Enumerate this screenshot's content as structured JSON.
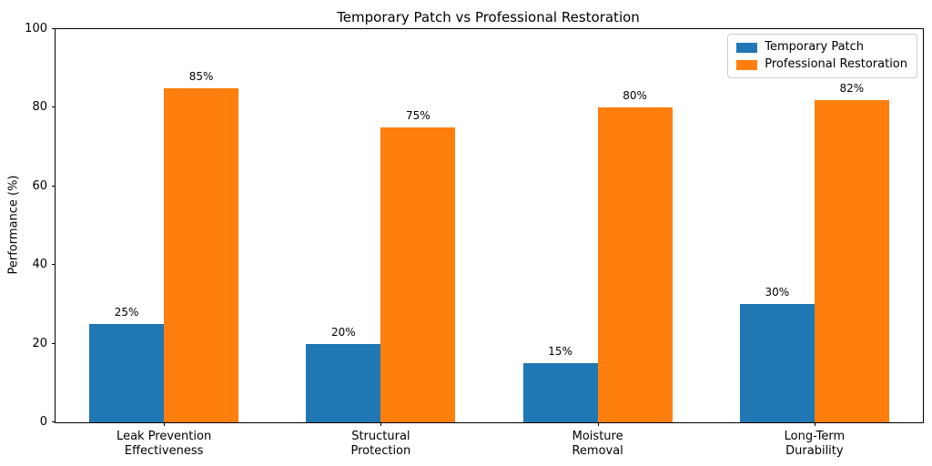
{
  "chart_data": {
    "type": "bar",
    "title": "Temporary Patch vs Professional Restoration",
    "xlabel": "",
    "ylabel": "Performance (%)",
    "ylim": [
      0,
      100
    ],
    "yticks": [
      0,
      20,
      40,
      60,
      80,
      100
    ],
    "grid": false,
    "legend_position": "upper right",
    "categories": [
      "Leak Prevention\nEffectiveness",
      "Structural\nProtection",
      "Moisture\nRemoval",
      "Long-Term\nDurability"
    ],
    "series": [
      {
        "name": "Temporary Patch",
        "color": "#1f77b4",
        "values": [
          25,
          20,
          15,
          30
        ],
        "value_labels": [
          "25%",
          "20%",
          "15%",
          "30%"
        ]
      },
      {
        "name": "Professional Restoration",
        "color": "#ff7f0e",
        "values": [
          85,
          75,
          80,
          82
        ],
        "value_labels": [
          "85%",
          "75%",
          "80%",
          "82%"
        ]
      }
    ]
  }
}
